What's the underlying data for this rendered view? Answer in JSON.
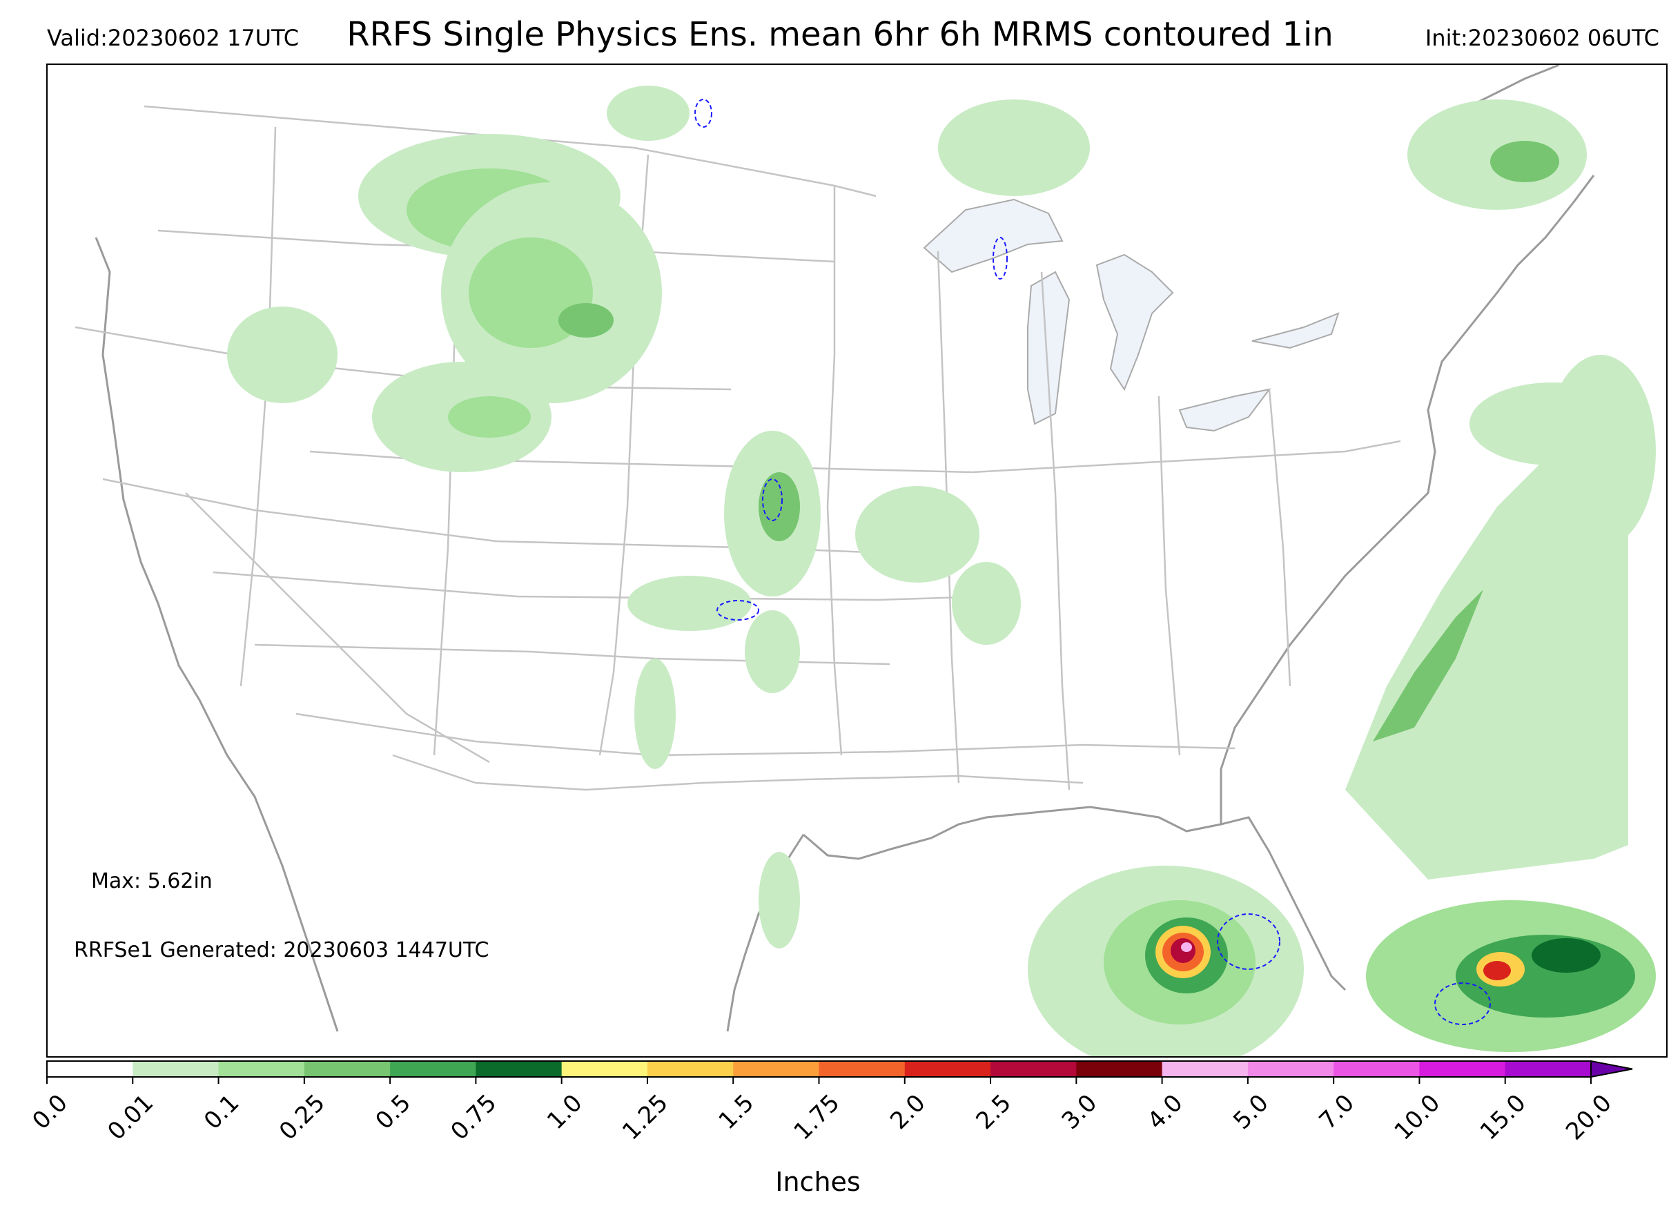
{
  "header": {
    "valid": "Valid:20230602 17UTC",
    "title": "RRFS Single Physics Ens. mean 6hr 6h MRMS contoured 1in",
    "init": "Init:20230602 06UTC"
  },
  "annotations": {
    "max": "Max: 5.62in",
    "generated": "RRFSe1 Generated: 20230603 1447UTC"
  },
  "colorbar": {
    "label": "Inches",
    "ticks": [
      "0.0",
      "0.01",
      "0.1",
      "0.25",
      "0.5",
      "0.75",
      "1.0",
      "1.25",
      "1.5",
      "1.75",
      "2.0",
      "2.5",
      "3.0",
      "4.0",
      "5.0",
      "7.0",
      "10.0",
      "15.0",
      "20.0"
    ],
    "colors": [
      "#ffffff",
      "#c8ebc4",
      "#a1e096",
      "#77c570",
      "#3fa653",
      "#0b6b2b",
      "#fff57a",
      "#fdd04c",
      "#fb9f3a",
      "#f3642b",
      "#d9221c",
      "#b3083a",
      "#7a0009",
      "#f6b4ee",
      "#f189e8",
      "#ea55e3",
      "#d61ade",
      "#a80bd0",
      "#6a00a8"
    ],
    "extend": "max"
  },
  "map": {
    "region": "CONUS",
    "contour_threshold": "1in",
    "contour_color": "#1a1aff",
    "max_location": "Gulf of Mexico"
  }
}
